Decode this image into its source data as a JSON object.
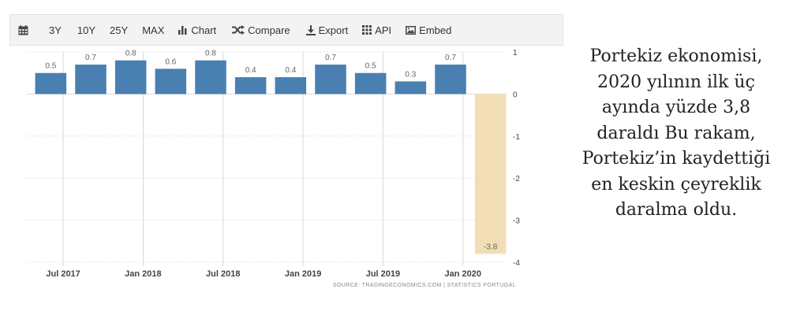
{
  "toolbar": {
    "items": [
      {
        "name": "calendar-icon",
        "label": ""
      },
      {
        "name": "range-3y-button",
        "label": "3Y"
      },
      {
        "name": "range-10y-button",
        "label": "10Y"
      },
      {
        "name": "range-25y-button",
        "label": "25Y"
      },
      {
        "name": "range-max-button",
        "label": "MAX"
      },
      {
        "name": "chart-button",
        "label": "Chart"
      },
      {
        "name": "compare-button",
        "label": "Compare"
      },
      {
        "name": "export-button",
        "label": "Export"
      },
      {
        "name": "api-button",
        "label": "API"
      },
      {
        "name": "embed-button",
        "label": "Embed"
      }
    ]
  },
  "chart_data": {
    "type": "bar",
    "categories": [
      "2017 Q2",
      "2017 Q3",
      "2017 Q4",
      "2018 Q1",
      "2018 Q2",
      "2018 Q3",
      "2018 Q4",
      "2019 Q1",
      "2019 Q2",
      "2019 Q3",
      "2019 Q4",
      "2020 Q1"
    ],
    "values": [
      0.5,
      0.7,
      0.8,
      0.6,
      0.8,
      0.4,
      0.4,
      0.7,
      0.5,
      0.3,
      0.7,
      -3.8
    ],
    "data_labels": [
      "0.5",
      "0.7",
      "0.8",
      "0.6",
      "0.8",
      "0.4",
      "0.4",
      "0.7",
      "0.5",
      "0.3",
      "0.7",
      "-3.8"
    ],
    "x_tick_labels": [
      "Jul 2017",
      "Jan 2018",
      "Jul 2018",
      "Jan 2019",
      "Jul 2019",
      "Jan 2020"
    ],
    "y_ticks": [
      1,
      0,
      -1,
      -2,
      -3,
      -4
    ],
    "ylim": [
      -4,
      1
    ],
    "y_axis_side": "right",
    "grid": true,
    "highlighted_index": 11,
    "colors": {
      "bar": "#4a7fb1",
      "highlight": "#f2deb6",
      "label": "#666666",
      "grid": "#d8d8d8"
    },
    "source": "SOURCE:  TRADINGECONOMICS.COM  |  STATISTICS PORTUGAL"
  },
  "side_text": "Portekiz ekonomisi, 2020 yılının ilk üç ayında yüzde 3,8 daraldı Bu rakam, Portekiz’in kaydettiği en keskin çeyreklik daralma oldu."
}
